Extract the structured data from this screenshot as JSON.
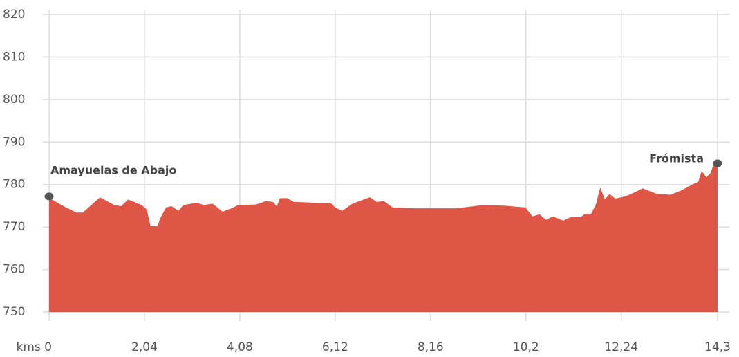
{
  "chart_data": {
    "type": "area",
    "x": [
      0,
      0.06,
      0.28,
      0.58,
      0.72,
      1.09,
      1.39,
      1.54,
      1.69,
      1.98,
      2.09,
      2.17,
      2.32,
      2.38,
      2.5,
      2.62,
      2.77,
      2.87,
      3.16,
      3.31,
      3.5,
      3.71,
      3.9,
      4.05,
      4.42,
      4.64,
      4.79,
      4.87,
      4.94,
      5.09,
      5.24,
      5.75,
      6.02,
      6.12,
      6.27,
      6.49,
      6.86,
      7.01,
      7.16,
      7.35,
      7.82,
      8.71,
      9.3,
      9.75,
      10.19,
      10.34,
      10.49,
      10.63,
      10.78,
      11.0,
      11.15,
      11.37,
      11.45,
      11.59,
      11.7,
      11.79,
      11.89,
      11.99,
      12.11,
      12.33,
      12.55,
      12.7,
      13.0,
      13.29,
      13.52,
      13.74,
      13.89,
      13.96,
      14.06,
      14.15,
      14.21,
      14.3
    ],
    "values": [
      777.0,
      776.5,
      775.1,
      773.4,
      773.4,
      777.0,
      775.2,
      774.9,
      776.5,
      775.2,
      774.1,
      770.2,
      770.2,
      772.1,
      774.6,
      774.9,
      773.8,
      775.2,
      775.7,
      775.2,
      775.5,
      773.6,
      774.4,
      775.2,
      775.3,
      776.1,
      775.9,
      774.9,
      776.8,
      776.8,
      775.9,
      775.7,
      775.7,
      774.6,
      773.8,
      775.5,
      777.0,
      775.9,
      776.1,
      774.6,
      774.4,
      774.4,
      775.2,
      775.0,
      774.6,
      772.5,
      773.0,
      771.7,
      772.5,
      771.5,
      772.3,
      772.3,
      773.0,
      773.0,
      775.4,
      779.3,
      776.5,
      777.8,
      776.7,
      777.2,
      778.3,
      779.1,
      777.8,
      777.6,
      778.6,
      779.9,
      780.7,
      783.2,
      781.7,
      782.7,
      784.7,
      785.6
    ],
    "color": "#e05646",
    "xlim": [
      0,
      14.3
    ],
    "ylim": [
      750,
      820
    ],
    "xticks": [
      {
        "value": 0,
        "label": "kms 0"
      },
      {
        "value": 2.04,
        "label": "2,04"
      },
      {
        "value": 4.08,
        "label": "4,08"
      },
      {
        "value": 6.12,
        "label": "6,12"
      },
      {
        "value": 8.16,
        "label": "8,16"
      },
      {
        "value": 10.2,
        "label": "10,2"
      },
      {
        "value": 12.24,
        "label": "12,24"
      },
      {
        "value": 14.3,
        "label": "14,3"
      }
    ],
    "yticks": [
      750,
      760,
      770,
      780,
      790,
      800,
      810,
      820
    ],
    "grid": true,
    "annotations": [
      {
        "text": "Amayuelas de Abajo",
        "x": 0,
        "y": 777.2
      },
      {
        "text": "Frómista",
        "x": 14.3,
        "y": 785.0
      }
    ]
  }
}
